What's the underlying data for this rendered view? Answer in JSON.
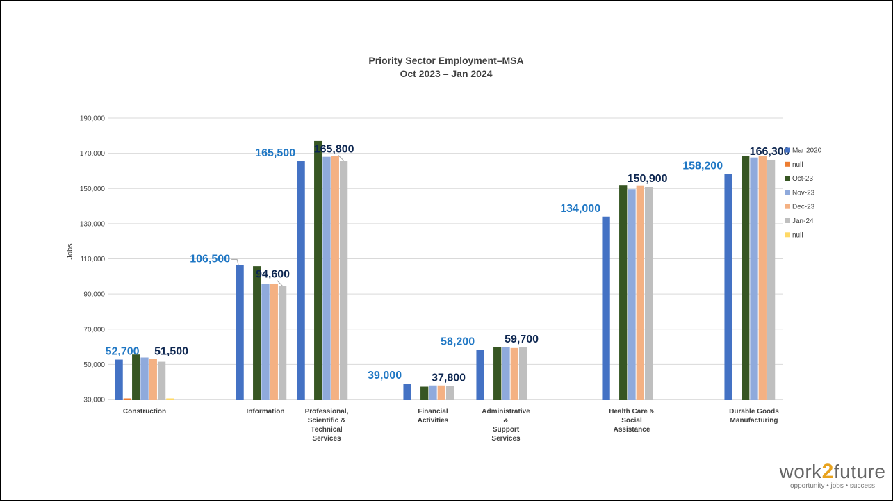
{
  "chart_data": {
    "type": "bar",
    "title_lines": [
      "Priority Sector Employment–MSA",
      "Oct 2023 – Jan 2024"
    ],
    "ylabel": "Jobs",
    "ylim": [
      30000,
      190000
    ],
    "yticks": [
      "30,000",
      "50,000",
      "70,000",
      "90,000",
      "110,000",
      "130,000",
      "150,000",
      "170,000",
      "190,000"
    ],
    "grid": true,
    "legend_position": "right",
    "categories": [
      [
        "Construction"
      ],
      [
        "Information"
      ],
      [
        "Professional,",
        "Scientific &",
        "Technical",
        "Services"
      ],
      [
        "Financial",
        "Activities"
      ],
      [
        "Administrative",
        "&",
        "Support",
        "Services"
      ],
      [
        "Health Care &",
        "Social",
        "Assistance"
      ],
      [
        "Durable Goods",
        "Manufacturing"
      ]
    ],
    "series": [
      {
        "name": "Mar 2020",
        "color": "#4472c4",
        "values": [
          52700,
          106500,
          165500,
          39000,
          58200,
          134000,
          158200
        ]
      },
      {
        "name": "null",
        "color": "#ed7d31",
        "values": [
          29800,
          null,
          null,
          null,
          null,
          null,
          null
        ]
      },
      {
        "name": "Oct-23",
        "color": "#375623",
        "values": [
          55600,
          105800,
          177000,
          37300,
          59700,
          152000,
          168600
        ]
      },
      {
        "name": "Nov-23",
        "color": "#8faadc",
        "values": [
          53900,
          95600,
          168000,
          38000,
          60000,
          149600,
          167600
        ]
      },
      {
        "name": "Dec-23",
        "color": "#f4b183",
        "values": [
          53300,
          95900,
          168400,
          38000,
          59300,
          151800,
          168400
        ]
      },
      {
        "name": "Jan-24",
        "color": "#bfbfbf",
        "values": [
          51500,
          94600,
          165800,
          37800,
          59700,
          150900,
          166300
        ]
      },
      {
        "name": "null",
        "color": "#ffd966",
        "values": [
          30200,
          null,
          null,
          null,
          null,
          null,
          null
        ]
      }
    ],
    "callouts": [
      {
        "text": "52,700",
        "style": "blue",
        "cat": 0,
        "series": 0
      },
      {
        "text": "51,500",
        "style": "dark",
        "cat": 0,
        "series": 5
      },
      {
        "text": "106,500",
        "style": "blue",
        "cat": 1,
        "series": 0
      },
      {
        "text": "94,600",
        "style": "dark",
        "cat": 1,
        "series": 5
      },
      {
        "text": "165,500",
        "style": "blue",
        "cat": 2,
        "series": 0
      },
      {
        "text": "165,800",
        "style": "dark",
        "cat": 2,
        "series": 5
      },
      {
        "text": "39,000",
        "style": "blue",
        "cat": 3,
        "series": 0
      },
      {
        "text": "37,800",
        "style": "dark",
        "cat": 3,
        "series": 5
      },
      {
        "text": "58,200",
        "style": "blue",
        "cat": 4,
        "series": 0
      },
      {
        "text": "59,700",
        "style": "dark",
        "cat": 4,
        "series": 5
      },
      {
        "text": "134,000",
        "style": "blue",
        "cat": 5,
        "series": 0
      },
      {
        "text": "150,900",
        "style": "dark",
        "cat": 5,
        "series": 5
      },
      {
        "text": "158,200",
        "style": "blue",
        "cat": 6,
        "series": 0
      },
      {
        "text": "166,300",
        "style": "dark",
        "cat": 6,
        "series": 5
      }
    ]
  },
  "logo": {
    "part1": "work",
    "part2": "2",
    "part3": "future",
    "tagline": "opportunity • jobs • success"
  }
}
